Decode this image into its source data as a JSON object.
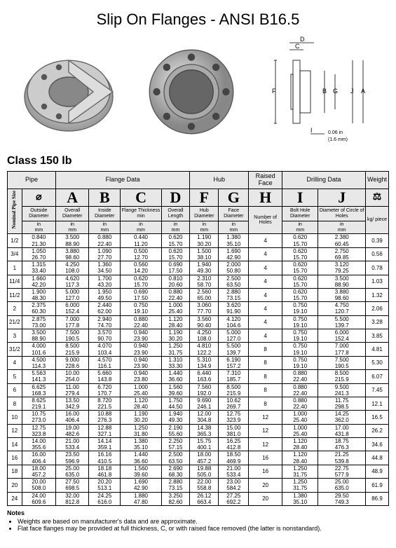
{
  "title": "Slip On Flanges - ANSI B16.5",
  "class_label": "Class 150 lb",
  "group_headers": [
    "Pipe",
    "Flange Data",
    "Hub",
    "Raised Face",
    "Drilling Data",
    "Weight"
  ],
  "letters": [
    "A",
    "B",
    "C",
    "D",
    "F",
    "G",
    "H",
    "I",
    "J"
  ],
  "col_labels": [
    "Nominal Pipe Size",
    "Outside Diameter",
    "Overall Diameter",
    "Inside Diameter",
    "Flange Thickness min",
    "Overall Length",
    "Hub Diameter",
    "Face Diameter",
    "Number of Holes",
    "Bolt Hole Diameter",
    "Diameter of Circle of Holes",
    "kg/ piece"
  ],
  "units": "in<br>mm",
  "diagram_note": "0.06 in<br>(1.6 mm)",
  "rows": [
    {
      "size": "1/2",
      "od": [
        "0.840",
        "21.30"
      ],
      "a": [
        "3.500",
        "88.90"
      ],
      "b": [
        "0.880",
        "22.40"
      ],
      "c": [
        "0.440",
        "11.20"
      ],
      "d": [
        "0.620",
        "15.70"
      ],
      "f": [
        "1.190",
        "30.20"
      ],
      "g": [
        "1.380",
        "35.10"
      ],
      "h": "4",
      "i": [
        "0.620",
        "15.70"
      ],
      "j": [
        "2.380",
        "60.45"
      ],
      "kg": "0.39"
    },
    {
      "size": "3/4",
      "od": [
        "1.050",
        "26.70"
      ],
      "a": [
        "3.880",
        "98.60"
      ],
      "b": [
        "1.090",
        "27.70"
      ],
      "c": [
        "0.500",
        "12.70"
      ],
      "d": [
        "0.620",
        "15.70"
      ],
      "f": [
        "1.500",
        "38.10"
      ],
      "g": [
        "1.690",
        "42.90"
      ],
      "h": "4",
      "i": [
        "0.620",
        "15.70"
      ],
      "j": [
        "2.750",
        "69.85"
      ],
      "kg": "0.56"
    },
    {
      "size": "1",
      "od": [
        "1.315",
        "33.40"
      ],
      "a": [
        "4.250",
        "108.0"
      ],
      "b": [
        "1.360",
        "34.50"
      ],
      "c": [
        "0.560",
        "14.20"
      ],
      "d": [
        "0.690",
        "17.50"
      ],
      "f": [
        "1.940",
        "49.30"
      ],
      "g": [
        "2.000",
        "50.80"
      ],
      "h": "4",
      "i": [
        "0.620",
        "15.70"
      ],
      "j": [
        "3.120",
        "79.25"
      ],
      "kg": "0.78"
    },
    {
      "size": "11/4",
      "od": [
        "1.660",
        "42.20"
      ],
      "a": [
        "4.620",
        "117.3"
      ],
      "b": [
        "1.700",
        "43.20"
      ],
      "c": [
        "0.620",
        "15.70"
      ],
      "d": [
        "0.810",
        "20.60"
      ],
      "f": [
        "2.310",
        "58.70"
      ],
      "g": [
        "2.500",
        "63.50"
      ],
      "h": "4",
      "i": [
        "0.620",
        "15.70"
      ],
      "j": [
        "3.500",
        "88.90"
      ],
      "kg": "1.03"
    },
    {
      "size": "11/2",
      "od": [
        "1.900",
        "48.30"
      ],
      "a": [
        "5.000",
        "127.0"
      ],
      "b": [
        "1.950",
        "49.50"
      ],
      "c": [
        "0.690",
        "17.50"
      ],
      "d": [
        "0.880",
        "22.40"
      ],
      "f": [
        "2.560",
        "65.00"
      ],
      "g": [
        "2.880",
        "73.15"
      ],
      "h": "4",
      "i": [
        "0.620",
        "15.70"
      ],
      "j": [
        "3.880",
        "98.60"
      ],
      "kg": "1.32"
    },
    {
      "size": "2",
      "od": [
        "2.375",
        "60.30"
      ],
      "a": [
        "6.000",
        "152.4"
      ],
      "b": [
        "2.440",
        "62.00"
      ],
      "c": [
        "0.750",
        "19.10"
      ],
      "d": [
        "1.000",
        "25.40"
      ],
      "f": [
        "3.060",
        "77.70"
      ],
      "g": [
        "3.620",
        "91.90"
      ],
      "h": "4",
      "i": [
        "0.750",
        "19.10"
      ],
      "j": [
        "4.750",
        "120.7"
      ],
      "kg": "2.06"
    },
    {
      "size": "21/2",
      "od": [
        "2.875",
        "73.00"
      ],
      "a": [
        "7.000",
        "177.8"
      ],
      "b": [
        "2.940",
        "74.70"
      ],
      "c": [
        "0.880",
        "22.40"
      ],
      "d": [
        "1.120",
        "28.40"
      ],
      "f": [
        "3.560",
        "90.40"
      ],
      "g": [
        "4.120",
        "104.6"
      ],
      "h": "4",
      "i": [
        "0.750",
        "19.10"
      ],
      "j": [
        "5.500",
        "139.7"
      ],
      "kg": "3.28"
    },
    {
      "size": "3",
      "od": [
        "3.500",
        "88.90"
      ],
      "a": [
        "7.500",
        "190.5"
      ],
      "b": [
        "3.570",
        "90.70"
      ],
      "c": [
        "0.940",
        "23.90"
      ],
      "d": [
        "1.190",
        "30.20"
      ],
      "f": [
        "4.250",
        "108.0"
      ],
      "g": [
        "5.000",
        "127.0"
      ],
      "h": "4",
      "i": [
        "0.750",
        "19.10"
      ],
      "j": [
        "6.000",
        "152.4"
      ],
      "kg": "3.85"
    },
    {
      "size": "31/2",
      "od": [
        "4.000",
        "101.6"
      ],
      "a": [
        "8.500",
        "215.9"
      ],
      "b": [
        "4.070",
        "103.4"
      ],
      "c": [
        "0.940",
        "23.90"
      ],
      "d": [
        "1.250",
        "31.75"
      ],
      "f": [
        "4.810",
        "122.2"
      ],
      "g": [
        "5.500",
        "139.7"
      ],
      "h": "8",
      "i": [
        "0.750",
        "19.10"
      ],
      "j": [
        "7.000",
        "177.8"
      ],
      "kg": "4.81"
    },
    {
      "size": "4",
      "od": [
        "4.500",
        "114.3"
      ],
      "a": [
        "9.000",
        "228.6"
      ],
      "b": [
        "4.570",
        "116.1"
      ],
      "c": [
        "0.940",
        "23.90"
      ],
      "d": [
        "1.310",
        "33.30"
      ],
      "f": [
        "5.310",
        "134.9"
      ],
      "g": [
        "6.190",
        "157.2"
      ],
      "h": "8",
      "i": [
        "0.750",
        "19.10"
      ],
      "j": [
        "7.500",
        "190.5"
      ],
      "kg": "5.30"
    },
    {
      "size": "5",
      "od": [
        "5.563",
        "141.3"
      ],
      "a": [
        "10.00",
        "254.0"
      ],
      "b": [
        "5.660",
        "143.8"
      ],
      "c": [
        "0.940",
        "23.80"
      ],
      "d": [
        "1.440",
        "36.60"
      ],
      "f": [
        "6.440",
        "163.6"
      ],
      "g": [
        "7.310",
        "185.7"
      ],
      "h": "8",
      "i": [
        "0.880",
        "22.40"
      ],
      "j": [
        "8.500",
        "215.9"
      ],
      "kg": "6.07"
    },
    {
      "size": "6",
      "od": [
        "6.625",
        "168.3"
      ],
      "a": [
        "11.00",
        "279.4"
      ],
      "b": [
        "6.720",
        "170.7"
      ],
      "c": [
        "1.000",
        "25.40"
      ],
      "d": [
        "1.560",
        "39.60"
      ],
      "f": [
        "7.560",
        "192.0"
      ],
      "g": [
        "8.500",
        "215.9"
      ],
      "h": "8",
      "i": [
        "0.880",
        "22.40"
      ],
      "j": [
        "9.500",
        "241.3"
      ],
      "kg": "7.45"
    },
    {
      "size": "8",
      "od": [
        "8.625",
        "219.1"
      ],
      "a": [
        "13.50",
        "342.9"
      ],
      "b": [
        "8.720",
        "221.5"
      ],
      "c": [
        "1.120",
        "28.40"
      ],
      "d": [
        "1.750",
        "44.50"
      ],
      "f": [
        "9.690",
        "246.1"
      ],
      "g": [
        "10.62",
        "269.7"
      ],
      "h": "8",
      "i": [
        "0.880",
        "22.40"
      ],
      "j": [
        "11.75",
        "298.5"
      ],
      "kg": "12.1"
    },
    {
      "size": "10",
      "od": [
        "10.75",
        "273.0"
      ],
      "a": [
        "16.00",
        "406.4"
      ],
      "b": [
        "10.88",
        "276.3"
      ],
      "c": [
        "1.190",
        "30.20"
      ],
      "d": [
        "1.940",
        "49.30"
      ],
      "f": [
        "12.00",
        "304.8"
      ],
      "g": [
        "12.75",
        "323.9"
      ],
      "h": "12",
      "i": [
        "1.000",
        "25.40"
      ],
      "j": [
        "14.25",
        "362.0"
      ],
      "kg": "16.5"
    },
    {
      "size": "12",
      "od": [
        "12.75",
        "323.8"
      ],
      "a": [
        "19.00",
        "482.6"
      ],
      "b": [
        "12.88",
        "327.1"
      ],
      "c": [
        "1.250",
        "31.80"
      ],
      "d": [
        "2.190",
        "55.60"
      ],
      "f": [
        "14.38",
        "365.3"
      ],
      "g": [
        "15.00",
        "381.0"
      ],
      "h": "12",
      "i": [
        "1.000",
        "25.40"
      ],
      "j": [
        "17.00",
        "431.8"
      ],
      "kg": "26.2"
    },
    {
      "size": "14",
      "od": [
        "14.00",
        "355.6"
      ],
      "a": [
        "21.00",
        "533.4"
      ],
      "b": [
        "14.14",
        "359.1"
      ],
      "c": [
        "1.380",
        "35.10"
      ],
      "d": [
        "2.250",
        "57.15"
      ],
      "f": [
        "15.75",
        "400.1"
      ],
      "g": [
        "16.25",
        "412.8"
      ],
      "h": "12",
      "i": [
        "1.120",
        "28.40"
      ],
      "j": [
        "18.75",
        "476.3"
      ],
      "kg": "34.6"
    },
    {
      "size": "16",
      "od": [
        "16.00",
        "406.4"
      ],
      "a": [
        "23.50",
        "596.9"
      ],
      "b": [
        "16.16",
        "410.5"
      ],
      "c": [
        "1.440",
        "36.60"
      ],
      "d": [
        "2.500",
        "63.50"
      ],
      "f": [
        "18.00",
        "457.2"
      ],
      "g": [
        "18.50",
        "469.9"
      ],
      "h": "16",
      "i": [
        "1.120",
        "28.40"
      ],
      "j": [
        "21.25",
        "539.8"
      ],
      "kg": "44.8"
    },
    {
      "size": "18",
      "od": [
        "18.00",
        "457.2"
      ],
      "a": [
        "25.00",
        "635.0"
      ],
      "b": [
        "18.18",
        "461.8"
      ],
      "c": [
        "1.560",
        "39.60"
      ],
      "d": [
        "2.690",
        "68.30"
      ],
      "f": [
        "19.88",
        "505.0"
      ],
      "g": [
        "21.00",
        "533.4"
      ],
      "h": "16",
      "i": [
        "1.250",
        "31.75"
      ],
      "j": [
        "22.75",
        "577.9"
      ],
      "kg": "48.9"
    },
    {
      "size": "20",
      "od": [
        "20.00",
        "508.0"
      ],
      "a": [
        "27.50",
        "698.5"
      ],
      "b": [
        "20.20",
        "513.1"
      ],
      "c": [
        "1.690",
        "42.90"
      ],
      "d": [
        "2.880",
        "73.15"
      ],
      "f": [
        "22.00",
        "558.8"
      ],
      "g": [
        "23.00",
        "584.2"
      ],
      "h": "20",
      "i": [
        "1.250",
        "31.75"
      ],
      "j": [
        "25.00",
        "635.0"
      ],
      "kg": "61.9"
    },
    {
      "size": "24",
      "od": [
        "24.00",
        "609.6"
      ],
      "a": [
        "32.00",
        "812.8"
      ],
      "b": [
        "24.25",
        "616.0"
      ],
      "c": [
        "1.880",
        "47.80"
      ],
      "d": [
        "3.250",
        "82.60"
      ],
      "f": [
        "26.12",
        "663.4"
      ],
      "g": [
        "27.25",
        "692.2"
      ],
      "h": "20",
      "i": [
        "1.380",
        "35.10"
      ],
      "j": [
        "29.50",
        "749.3"
      ],
      "kg": "86.9"
    }
  ],
  "notes_title": "Notes",
  "notes": [
    "Weights are based on manufacturer's data and are approximate.",
    "Flat face flanges may be provided at full thickness, C, or with raised face removed (the latter is nonstandard)."
  ]
}
